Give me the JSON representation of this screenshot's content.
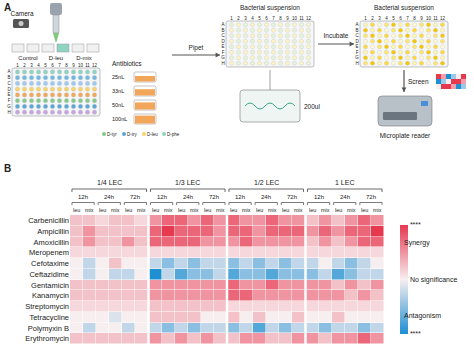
{
  "panel_a": {
    "label": "A",
    "camera": "Camera",
    "plate_groups": [
      "Control",
      "D-leu",
      "D-mix"
    ],
    "column_numbers": [
      1,
      2,
      3,
      4,
      5,
      6,
      7,
      8,
      9,
      10,
      11,
      12
    ],
    "row_letters": [
      "A",
      "B",
      "C",
      "D",
      "E",
      "F",
      "G",
      "H"
    ],
    "antibiotics": "Antibiotics",
    "volumes": [
      "25nL",
      "33nL",
      "50nL",
      "100nL"
    ],
    "amino_acids": [
      "D-tyr",
      "D-try",
      "D-leu",
      "D-phe"
    ],
    "steps": [
      "Pipet",
      "Incubate",
      "Screen"
    ],
    "plate_titles": [
      "Bacterial suspension",
      "Bacterial suspension"
    ],
    "volume": "200ul",
    "reader": "Microplate reader"
  },
  "panel_b_label": "B",
  "chart_data": {
    "type": "heatmap",
    "rows": [
      "Carbenicillin",
      "Ampicillin",
      "Amoxicillin",
      "Meropenem",
      "Cefotaxime",
      "Ceftazidime",
      "Gentamicin",
      "Kanamycin",
      "Streptomycin",
      "Tetracycline",
      "Polymyxin B",
      "Erythromycin"
    ],
    "column_groups": [
      "1/4 LEC",
      "1/3 LEC",
      "1/2 LEC",
      "1 LEC"
    ],
    "times": [
      "12h",
      "24h",
      "72h"
    ],
    "treatments": [
      "leu",
      "mix"
    ],
    "z": [
      [
        1,
        1,
        0.5,
        1,
        1,
        0.5,
        2,
        3,
        3,
        2,
        3,
        2,
        3,
        2,
        2,
        3,
        2,
        2,
        1,
        2,
        1,
        2,
        3,
        2
      ],
      [
        1,
        2,
        1,
        1,
        1,
        1,
        3,
        4,
        3,
        3,
        3,
        2,
        3,
        3,
        2,
        3,
        3,
        3,
        2,
        3,
        2,
        3,
        3,
        4
      ],
      [
        1,
        2,
        1,
        1,
        2,
        1,
        3,
        3,
        3,
        3,
        2,
        2,
        2,
        3,
        2,
        2,
        2,
        2,
        1,
        2,
        1,
        2,
        3,
        3
      ],
      [
        0.5,
        0.5,
        0.5,
        0.5,
        0.5,
        0.5,
        0.5,
        0.5,
        0.5,
        0.5,
        0.5,
        0.5,
        0.5,
        0.5,
        0.5,
        0.5,
        0.5,
        0.5,
        0.5,
        0.5,
        0.5,
        0.5,
        0.5,
        0.5
      ],
      [
        0,
        -1,
        0,
        1,
        0,
        0,
        -1,
        -2,
        -1,
        -2,
        -1,
        -1,
        -2,
        -1,
        -2,
        -1,
        -2,
        -1,
        -1,
        0,
        -1,
        -2,
        -1,
        0
      ],
      [
        0,
        -1,
        0,
        -1,
        -1,
        0,
        -4,
        -1,
        -3,
        -2,
        -2,
        -1,
        -3,
        -2,
        -2,
        -3,
        -2,
        -2,
        -2,
        -1,
        -3,
        -2,
        -1,
        -1
      ],
      [
        1,
        1,
        1,
        1,
        1,
        1,
        2,
        2,
        2,
        2,
        2,
        2,
        3,
        2,
        2,
        3,
        2,
        2,
        2,
        2,
        1,
        2,
        1,
        2
      ],
      [
        1,
        1,
        1,
        1,
        1,
        1,
        2,
        2,
        2,
        2,
        2,
        2,
        3,
        3,
        2,
        2,
        2,
        2,
        2,
        2,
        2,
        1,
        2,
        1
      ],
      [
        0.5,
        0.5,
        0.5,
        0.5,
        0.5,
        0.5,
        1,
        1,
        1,
        1,
        1,
        1,
        0.5,
        0.5,
        0.5,
        0.5,
        0.5,
        0.5,
        0.5,
        0.5,
        0.5,
        0.5,
        0.5,
        0.5
      ],
      [
        0,
        0,
        0,
        -0.5,
        0,
        0,
        1,
        1,
        1,
        1,
        0,
        0,
        1,
        0,
        1,
        0,
        0,
        1,
        0,
        0,
        1,
        0,
        0,
        0
      ],
      [
        0,
        -1,
        0,
        0,
        -1,
        0,
        -1,
        -2,
        -1,
        -2,
        -1,
        -1,
        -2,
        -1,
        -3,
        -1,
        -2,
        -1,
        -1,
        -2,
        -1,
        -1,
        -2,
        -1
      ],
      [
        1,
        1,
        1,
        1,
        1,
        1,
        2,
        1,
        2,
        1,
        2,
        1,
        1,
        2,
        2,
        1,
        1,
        2,
        2,
        1,
        2,
        2,
        3,
        2
      ]
    ],
    "zlim": [
      -4,
      4
    ],
    "colorbar_ticks": [
      {
        "value": 4,
        "label": "****"
      },
      {
        "value": 0,
        "label": "No significance"
      },
      {
        "value": -4,
        "label": "****"
      }
    ],
    "colorbar_labels": {
      "high": "Synergy",
      "low": "Antagonism"
    },
    "colors": [
      "#1e8fd1",
      "#f7eef0",
      "#e63950"
    ],
    "tick_labels": "y"
  }
}
